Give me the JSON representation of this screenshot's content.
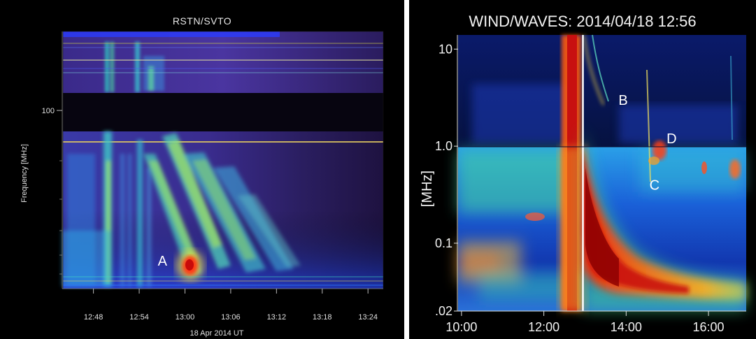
{
  "chart_data": [
    {
      "type": "heatmap",
      "title": "RSTN/SVTO",
      "ylabel": "Frequency [MHz]",
      "xlabel": "18 Apr 2014 UT",
      "y_ticks": [
        "100"
      ],
      "x_ticks": [
        "12:48",
        "12:54",
        "13:00",
        "13:06",
        "13:12",
        "13:18",
        "13:24"
      ],
      "xlim": [
        "12:44",
        "13:26"
      ],
      "scale_y": "log",
      "annotations": [
        {
          "label": "A",
          "time": "12:59"
        }
      ]
    },
    {
      "type": "heatmap",
      "title": "WIND/WAVES: 2014/04/18 12:56",
      "ylabel": "[MHz]",
      "y_ticks": [
        "10",
        "1.0",
        "0.1",
        ".02"
      ],
      "x_ticks": [
        "10:00",
        "12:00",
        "14:00",
        "16:00"
      ],
      "xlim": [
        "09:55",
        "16:55"
      ],
      "ylim": [
        0.02,
        14
      ],
      "scale_y": "log",
      "marker_line_time": "12:57",
      "annotations": [
        {
          "label": "B",
          "time": "13:55",
          "freq_mhz": 3.0
        },
        {
          "label": "C",
          "time": "14:40",
          "freq_mhz": 0.4
        },
        {
          "label": "D",
          "time": "15:05",
          "freq_mhz": 1.2
        }
      ]
    }
  ]
}
